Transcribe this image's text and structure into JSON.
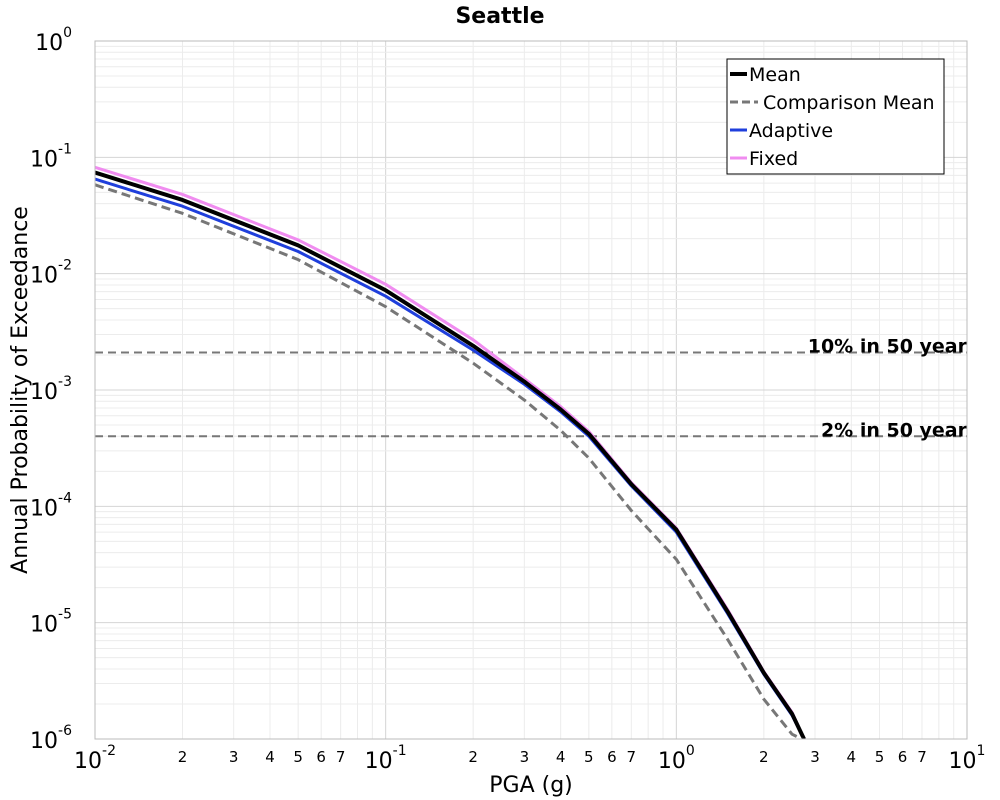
{
  "chart_data": {
    "type": "line",
    "title": "Seattle",
    "xlabel": "PGA (g)",
    "ylabel": "Annual Probability of Exceedance",
    "xscale": "log",
    "yscale": "log",
    "xlim": [
      0.01,
      10
    ],
    "ylim": [
      1e-06,
      1
    ],
    "grid": true,
    "legend_position": "top-right",
    "x_major_ticks": [
      {
        "base": "10",
        "exp": "-2",
        "value": 0.01
      },
      {
        "base": "10",
        "exp": "-1",
        "value": 0.1
      },
      {
        "base": "10",
        "exp": "0",
        "value": 1
      },
      {
        "base": "10",
        "exp": "1",
        "value": 10
      }
    ],
    "x_minor_ticks": [
      {
        "label": "2",
        "value": 0.02
      },
      {
        "label": "3",
        "value": 0.03
      },
      {
        "label": "4",
        "value": 0.04
      },
      {
        "label": "5",
        "value": 0.05
      },
      {
        "label": "6",
        "value": 0.06
      },
      {
        "label": "7",
        "value": 0.07
      },
      {
        "label": "2",
        "value": 0.2
      },
      {
        "label": "3",
        "value": 0.3
      },
      {
        "label": "4",
        "value": 0.4
      },
      {
        "label": "5",
        "value": 0.5
      },
      {
        "label": "6",
        "value": 0.6
      },
      {
        "label": "7",
        "value": 0.7
      },
      {
        "label": "2",
        "value": 2
      },
      {
        "label": "3",
        "value": 3
      },
      {
        "label": "4",
        "value": 4
      },
      {
        "label": "5",
        "value": 5
      },
      {
        "label": "6",
        "value": 6
      },
      {
        "label": "7",
        "value": 7
      }
    ],
    "y_major_ticks": [
      {
        "base": "10",
        "exp": "0",
        "value": 1
      },
      {
        "base": "10",
        "exp": "-1",
        "value": 0.1
      },
      {
        "base": "10",
        "exp": "-2",
        "value": 0.01
      },
      {
        "base": "10",
        "exp": "-3",
        "value": 0.001
      },
      {
        "base": "10",
        "exp": "-4",
        "value": 0.0001
      },
      {
        "base": "10",
        "exp": "-5",
        "value": 1e-05
      },
      {
        "base": "10",
        "exp": "-6",
        "value": 1e-06
      }
    ],
    "reference_lines": [
      {
        "label": "10% in 50 year",
        "y": 0.0021,
        "color": "#777777"
      },
      {
        "label": "2% in 50 year",
        "y": 0.0004,
        "color": "#777777"
      }
    ],
    "series": [
      {
        "name": "Fixed",
        "color": "#f08cf0",
        "style": "solid",
        "width": 3,
        "x": [
          0.01,
          0.02,
          0.05,
          0.1,
          0.2,
          0.3,
          0.4,
          0.5,
          0.7,
          1.0,
          1.5,
          2.0,
          2.5,
          2.75
        ],
        "y": [
          0.082,
          0.048,
          0.0195,
          0.0081,
          0.0027,
          0.00125,
          0.00072,
          0.00044,
          0.00016,
          6.5e-05,
          1.3e-05,
          3.8e-06,
          1.7e-06,
          1e-06
        ]
      },
      {
        "name": "Adaptive",
        "color": "#1f3fdc",
        "style": "solid",
        "width": 3,
        "x": [
          0.01,
          0.02,
          0.05,
          0.1,
          0.2,
          0.3,
          0.4,
          0.5,
          0.7,
          1.0,
          1.5,
          2.0,
          2.5,
          2.75
        ],
        "y": [
          0.065,
          0.038,
          0.0155,
          0.0064,
          0.0022,
          0.00112,
          0.00065,
          0.0004,
          0.00015,
          6e-05,
          1.2e-05,
          3.6e-06,
          1.6e-06,
          1e-06
        ]
      },
      {
        "name": "Mean",
        "color": "#000000",
        "style": "solid",
        "width": 4,
        "x": [
          0.01,
          0.02,
          0.05,
          0.1,
          0.2,
          0.3,
          0.4,
          0.5,
          0.7,
          1.0,
          1.5,
          2.0,
          2.5,
          2.75
        ],
        "y": [
          0.074,
          0.043,
          0.0175,
          0.0072,
          0.0024,
          0.00118,
          0.00068,
          0.00042,
          0.000155,
          6.3e-05,
          1.25e-05,
          3.7e-06,
          1.65e-06,
          1e-06
        ]
      },
      {
        "name": "Comparison Mean",
        "color": "#777777",
        "style": "dashed",
        "width": 3,
        "x": [
          0.01,
          0.02,
          0.05,
          0.1,
          0.2,
          0.3,
          0.4,
          0.5,
          0.7,
          1.0,
          1.5,
          2.0,
          2.5,
          2.7
        ],
        "y": [
          0.058,
          0.033,
          0.0132,
          0.0052,
          0.0017,
          0.00082,
          0.00045,
          0.00026,
          9.2e-05,
          3.5e-05,
          7.2e-06,
          2.2e-06,
          1.1e-06,
          1e-06
        ]
      }
    ],
    "legend": [
      {
        "name": "Mean",
        "color": "#000000",
        "style": "solid"
      },
      {
        "name": "Comparison Mean",
        "color": "#777777",
        "style": "dashed"
      },
      {
        "name": "Adaptive",
        "color": "#1f3fdc",
        "style": "solid"
      },
      {
        "name": "Fixed",
        "color": "#f08cf0",
        "style": "solid"
      }
    ]
  }
}
